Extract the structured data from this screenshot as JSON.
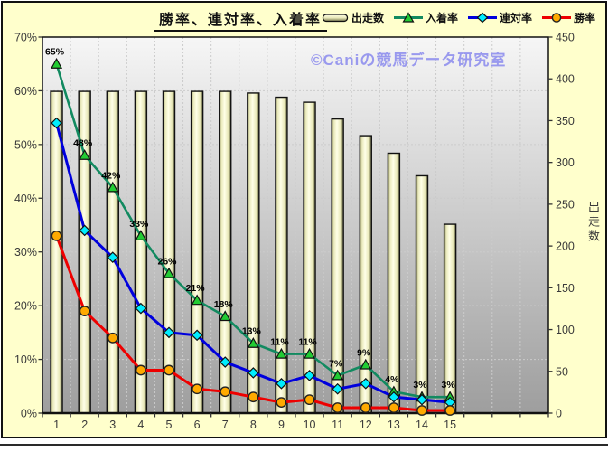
{
  "header": {
    "title": "勝率、連対率、入着率",
    "watermark": "©Caniの競馬データ研究室"
  },
  "legend": {
    "items": [
      {
        "label": "出走数",
        "type": "bar"
      },
      {
        "label": "入着率",
        "type": "triangle"
      },
      {
        "label": "連対率",
        "type": "diamond"
      },
      {
        "label": "勝率",
        "type": "circle"
      }
    ]
  },
  "colors": {
    "background": "#FFFFCC",
    "plot_top": "#F6F6F6",
    "plot_bottom": "#9E9E9E",
    "grid": "#CBCBCB",
    "bar_edge": "#73734D",
    "bar_mid": "#E9E9B9",
    "bar_light": "#FFFFE8",
    "placing_line": "#128A60",
    "placing_marker": "#22CC33",
    "quinella_line": "#0000DD",
    "quinella_marker": "#00EEFF",
    "win_line": "#EE0000",
    "win_marker": "#FFAA00",
    "axis_text": "#3A3A3A",
    "watermark": "#9999EE"
  },
  "chart_data": {
    "type": "bar+line combo",
    "categories": [
      "1",
      "2",
      "3",
      "4",
      "5",
      "6",
      "7",
      "8",
      "9",
      "10",
      "11",
      "12",
      "13",
      "14",
      "15"
    ],
    "total_slots": 18,
    "left_axis": {
      "min": 0,
      "max": 70,
      "ticks": [
        "0%",
        "10%",
        "20%",
        "30%",
        "40%",
        "50%",
        "60%",
        "70%"
      ]
    },
    "right_axis": {
      "min": 0,
      "max": 450,
      "ticks": [
        "0",
        "50",
        "100",
        "150",
        "200",
        "250",
        "300",
        "350",
        "400",
        "450"
      ],
      "label": "出走数"
    },
    "series": [
      {
        "name": "出走数",
        "type": "bar",
        "axis": "right",
        "values": [
          385,
          385,
          385,
          385,
          385,
          385,
          385,
          383,
          378,
          372,
          352,
          332,
          311,
          284,
          226
        ]
      },
      {
        "name": "入着率",
        "type": "line",
        "marker": "triangle",
        "axis": "left",
        "values": [
          65,
          48,
          42,
          33,
          26,
          21,
          18,
          13,
          11,
          11,
          7,
          9,
          4,
          3,
          3
        ],
        "point_labels": [
          "65%",
          "48%",
          "42%",
          "33%",
          "26%",
          "21%",
          "18%",
          "13%",
          "11%",
          "11%",
          "7%",
          "9%",
          "4%",
          "3%",
          "3%"
        ]
      },
      {
        "name": "連対率",
        "type": "line",
        "marker": "diamond",
        "axis": "left",
        "values": [
          54,
          34,
          29,
          19.5,
          15,
          14.5,
          9.5,
          7.5,
          5.5,
          7,
          4.5,
          5.5,
          3,
          2.5,
          2
        ]
      },
      {
        "name": "勝率",
        "type": "line",
        "marker": "circle",
        "axis": "left",
        "values": [
          33,
          19,
          14,
          8,
          8,
          4.5,
          4,
          3,
          2,
          2.5,
          1,
          1,
          1,
          0.5,
          0.5
        ]
      }
    ]
  }
}
